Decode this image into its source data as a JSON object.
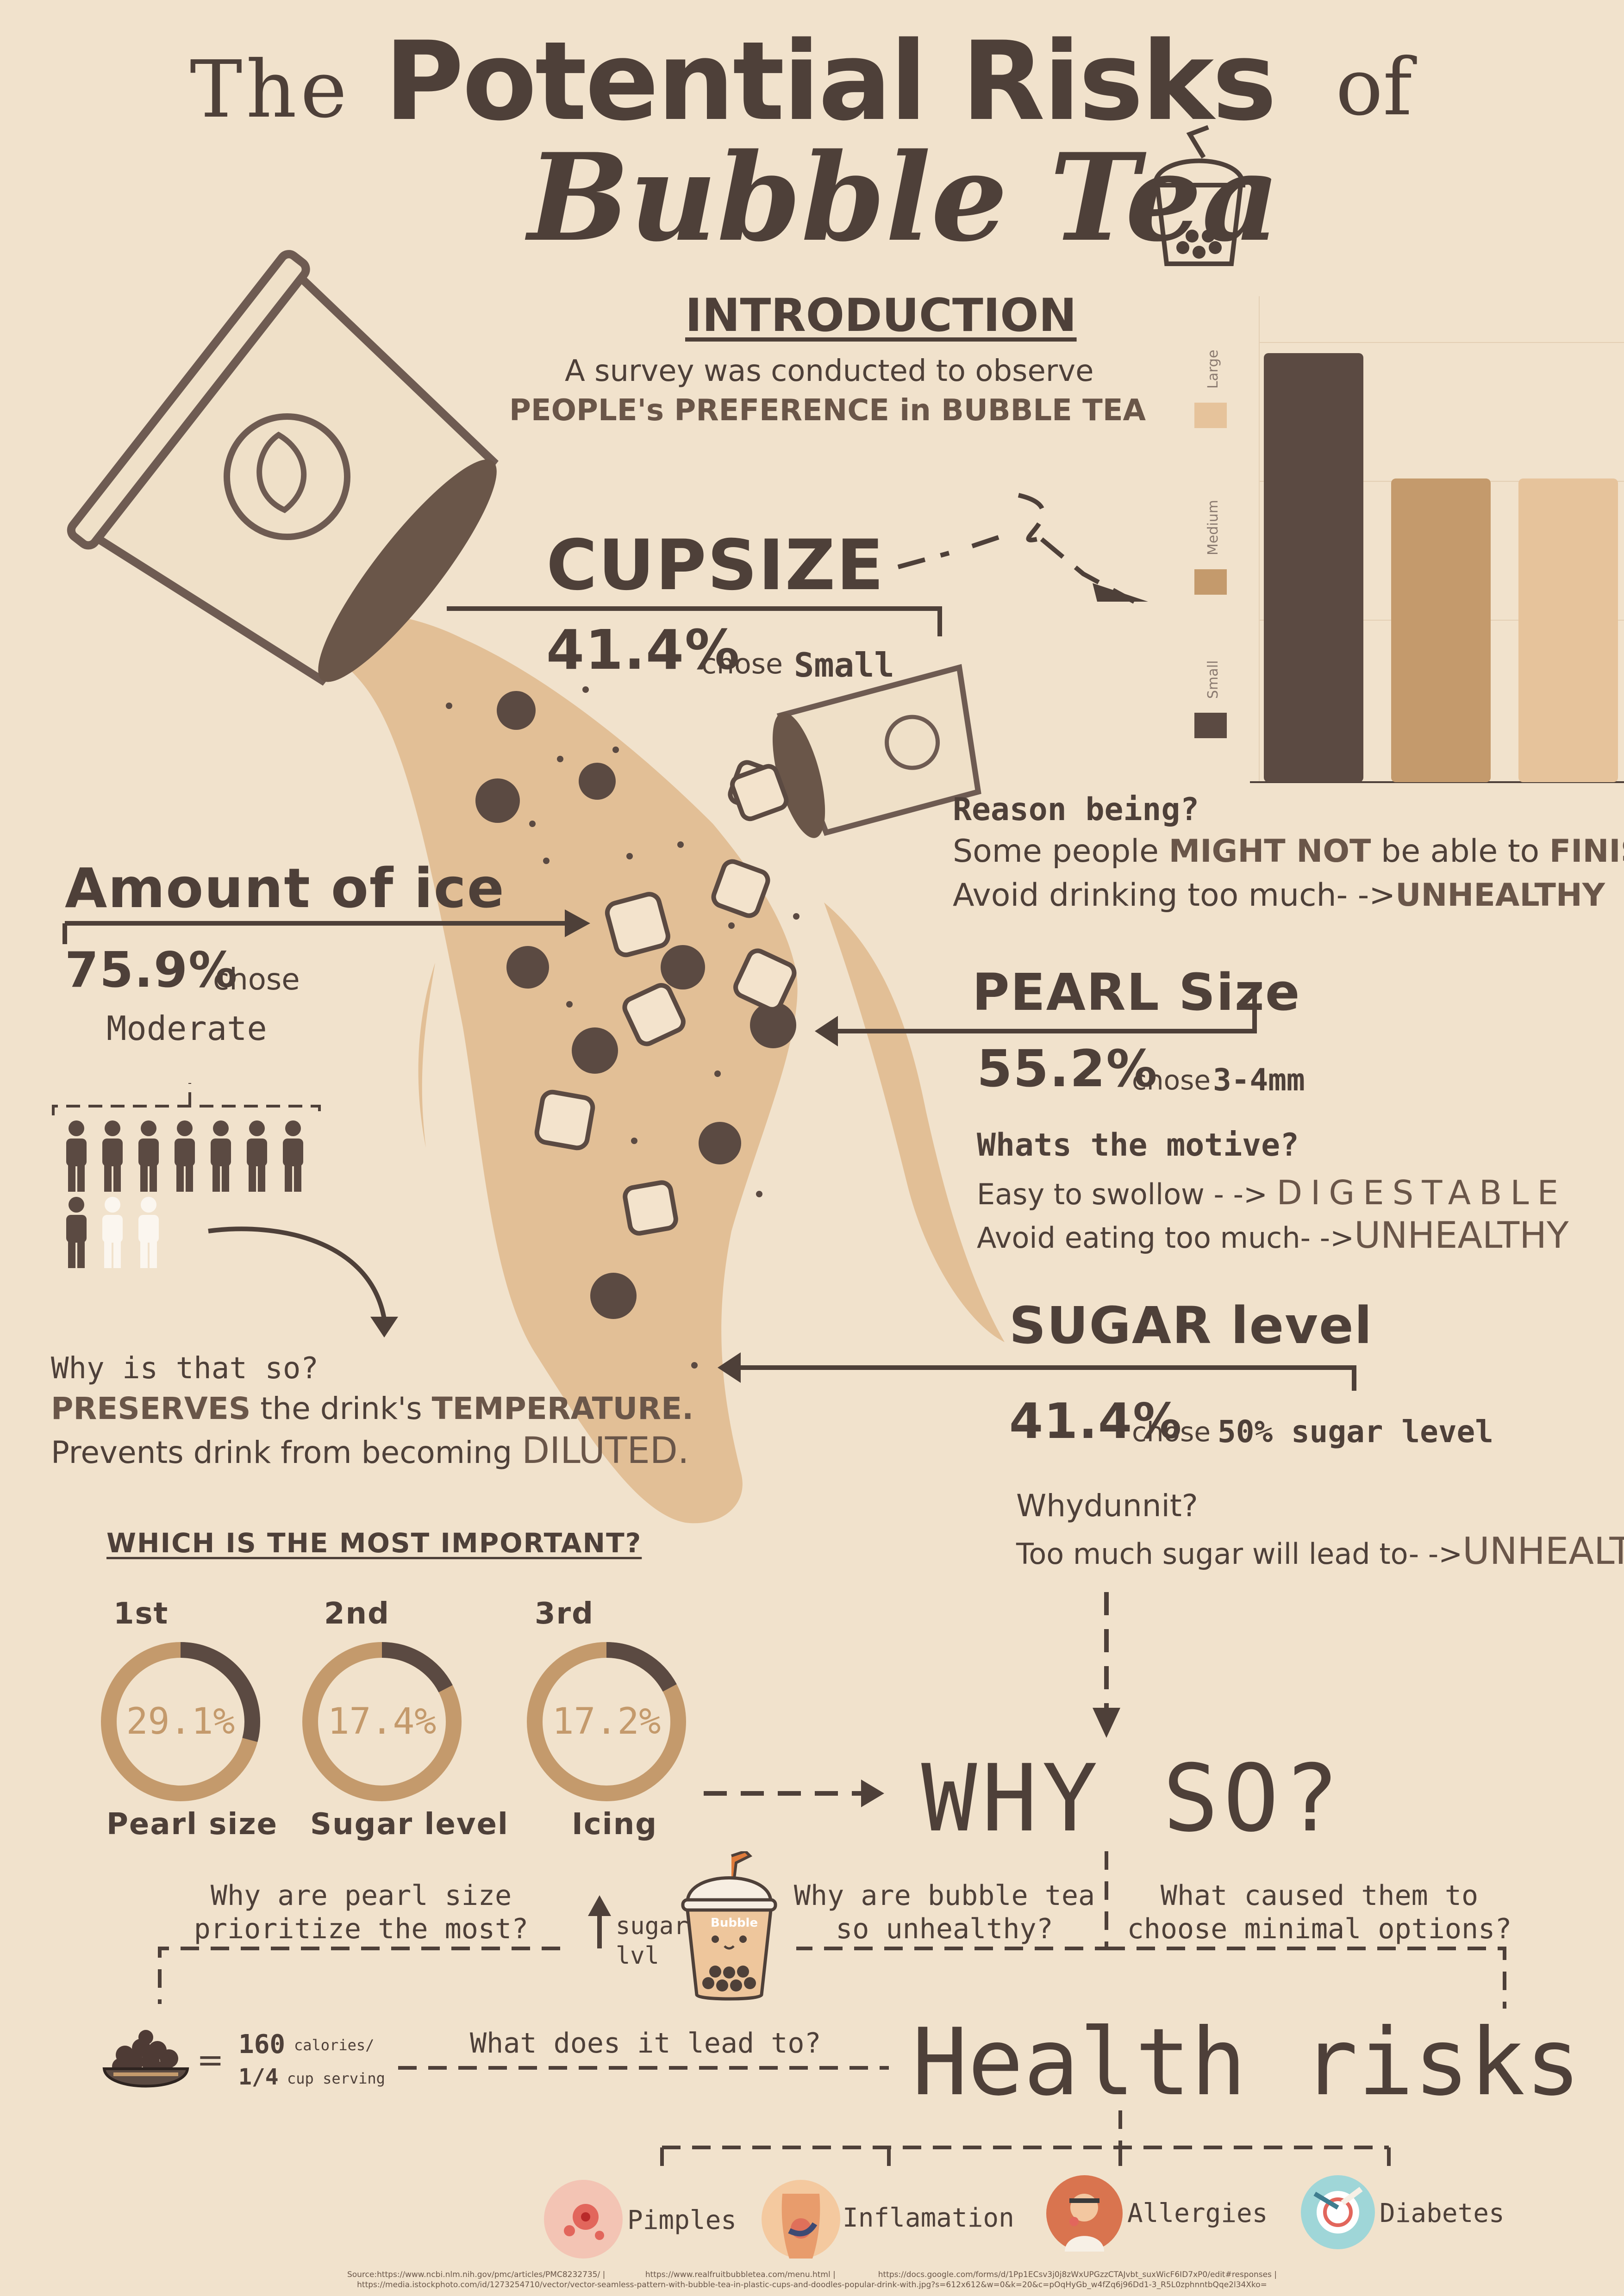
{
  "title": {
    "the": "The",
    "main": "Potential Risks",
    "of": "of",
    "sub": "Bubble Tea"
  },
  "intro": {
    "heading": "INTRODUCTION",
    "line1": "A survey was conducted to observe",
    "line2": "PEOPLE's PREFERENCE in BUBBLE TEA"
  },
  "chart_data": {
    "type": "bar",
    "categories": [
      "Small",
      "Medium",
      "Large"
    ],
    "values": [
      41.4,
      29.3,
      29.3
    ],
    "legend": [
      "Large",
      "Medium",
      "Small"
    ],
    "colors": {
      "Small": "#5b4a42",
      "Medium": "#c49a6c",
      "Large": "#e6c39b"
    }
  },
  "cupsize": {
    "heading": "CUPSIZE",
    "percent": "41.4%",
    "chose": "chose",
    "choice": "Small",
    "reason_q": "Reason being?",
    "reason_1a": "Some people ",
    "reason_1b": "MIGHT NOT",
    "reason_1c": " be able to ",
    "reason_1d": "FINISH.",
    "reason_2a": "Avoid drinking too much- ->",
    "reason_2b": "UNHEALTHY"
  },
  "ice": {
    "heading": "Amount of ice",
    "percent": "75.9%",
    "chose": "chose",
    "choice": "Moderate",
    "why_q": "Why is that so?",
    "why_1a": "PRESERVES",
    "why_1b": " the drink's ",
    "why_1c": "TEMPERATURE.",
    "why_2a": "Prevents drink from becoming ",
    "why_2b": "DILUTED."
  },
  "pearl": {
    "heading": "PEARL Size",
    "percent": "55.2%",
    "chose": "chose",
    "choice": "3-4mm",
    "motive_q": "Whats the motive?",
    "motive_1a": "Easy to swollow - -> ",
    "motive_1b": "DIGESTABLE",
    "motive_2a": "Avoid eating too much- ->",
    "motive_2b": "UNHEALTHY"
  },
  "sugar": {
    "heading": "SUGAR level",
    "percent": "41.4%",
    "chose": "chose",
    "choice": "50% sugar level",
    "why_q": "Whydunnit?",
    "why_1a": "Too much sugar will lead to- ->",
    "why_1b": "UNHEALTHY"
  },
  "important": {
    "heading": "WHICH IS THE MOST IMPORTANT?",
    "items": [
      {
        "rank": "1st",
        "value": "29.1%",
        "fraction": 0.291,
        "label": "Pearl size"
      },
      {
        "rank": "2nd",
        "value": "17.4%",
        "fraction": 0.174,
        "label": "Sugar level"
      },
      {
        "rank": "3rd",
        "value": "17.2%",
        "fraction": 0.172,
        "label": "Icing"
      }
    ]
  },
  "whyso": {
    "heading": "WHY SO?",
    "q_pearl": "Why are pearl size prioritize the most?",
    "q_unhealthy": "Why are bubble tea so unhealthy?",
    "q_minimal": "What caused them to choose minimal options?",
    "sugar_lvl": "sugar lvl",
    "cup_label": "Bubble"
  },
  "calories": {
    "equals": "=",
    "value": "160",
    "unit": "calories/",
    "serving": "1/4",
    "serving_unit": "cup serving"
  },
  "health": {
    "lead": "What does it lead to?",
    "heading": "Health risks",
    "risks": [
      "Pimples",
      "Inflamation",
      "Allergies",
      "Diabetes"
    ]
  },
  "source": {
    "line1": "Source:https://www.ncbi.nlm.nih.gov/pmc/articles/PMC8232735/ |                https://www.realfruitbubbletea.com/menu.html |                 https://docs.google.com/forms/d/1Pp1ECsv3j0j8zWxUPGzzCTAJvbt_suxWicF6ID7xP0/edit#responses |",
    "line2": "https://media.istockphoto.com/id/1273254710/vector/vector-seamless-pattern-with-bubble-tea-in-plastic-cups-and-doodles-popular-drink-with.jpg?s=612x612&w=0&k=20&c=pOqHyGb_w4fZq6j96Dd1-3_R5L0zphnntbQqe2l34Xko="
  }
}
